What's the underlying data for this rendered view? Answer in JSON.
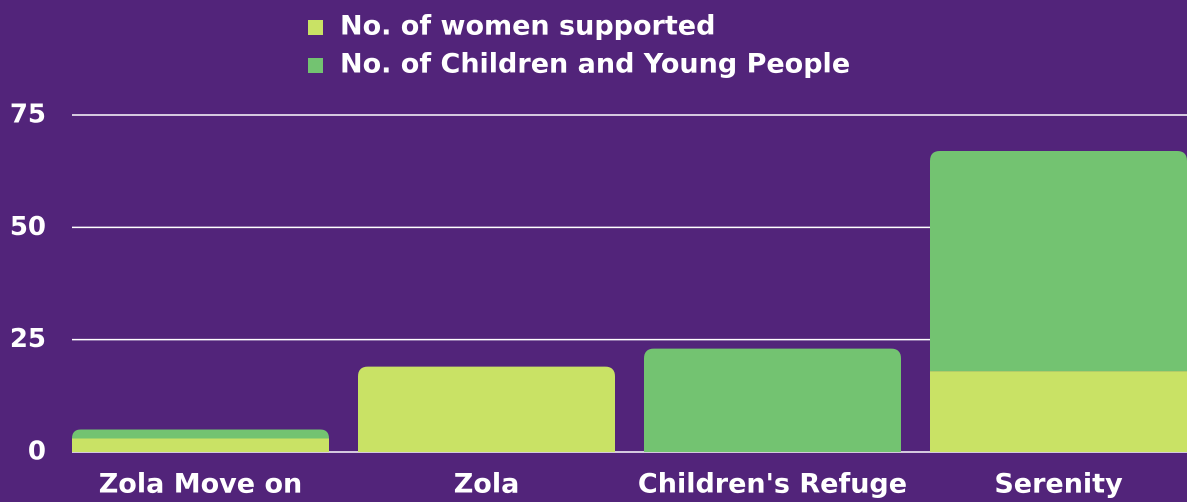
{
  "chart_data": {
    "type": "stacked_bar",
    "categories": [
      "Zola Move on",
      "Zola",
      "Children's Refuge",
      "Serenity"
    ],
    "series": [
      {
        "name": "No. of women supported",
        "color": "#c9e265",
        "values": [
          3,
          19,
          0,
          18
        ]
      },
      {
        "name": "No. of Children and Young People",
        "color": "#73c371",
        "values": [
          2,
          0,
          23,
          49
        ]
      }
    ],
    "ylim": [
      0,
      75
    ],
    "yticks": [
      0,
      25,
      50,
      75
    ],
    "grid": true,
    "legend": "top"
  }
}
